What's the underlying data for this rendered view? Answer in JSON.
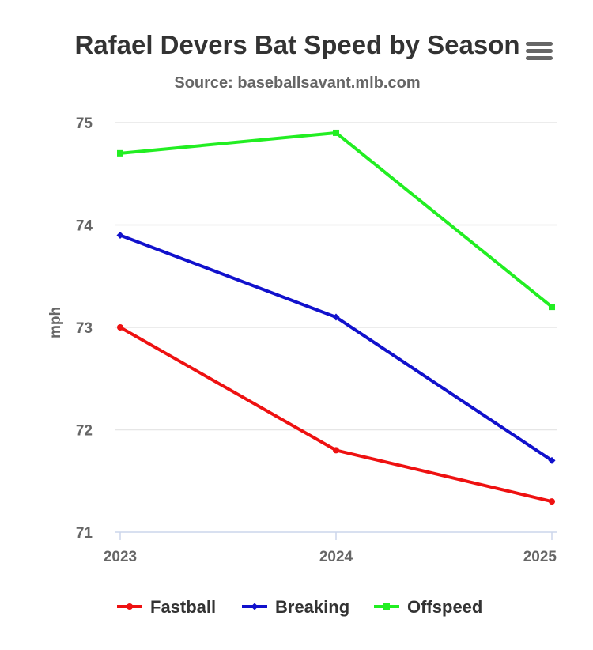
{
  "chart_data": {
    "type": "line",
    "title": "Rafael Devers Bat Speed by Season",
    "subtitle": "Source: baseballsavant.mlb.com",
    "xlabel": "",
    "ylabel": "mph",
    "categories": [
      "2023",
      "2024",
      "2025"
    ],
    "ylim": [
      71,
      75
    ],
    "yticks": [
      71,
      72,
      73,
      74,
      75
    ],
    "grid": true,
    "legend_position": "bottom",
    "series": [
      {
        "name": "Fastball",
        "color": "#ee1111",
        "marker": "circle",
        "values": [
          73.0,
          71.8,
          71.3
        ]
      },
      {
        "name": "Breaking",
        "color": "#1111cc",
        "marker": "diamond",
        "values": [
          73.9,
          73.1,
          71.7
        ]
      },
      {
        "name": "Offspeed",
        "color": "#22ee22",
        "marker": "square",
        "values": [
          74.7,
          74.9,
          73.2
        ]
      }
    ]
  },
  "menu": {
    "icon": "hamburger-menu-icon"
  }
}
